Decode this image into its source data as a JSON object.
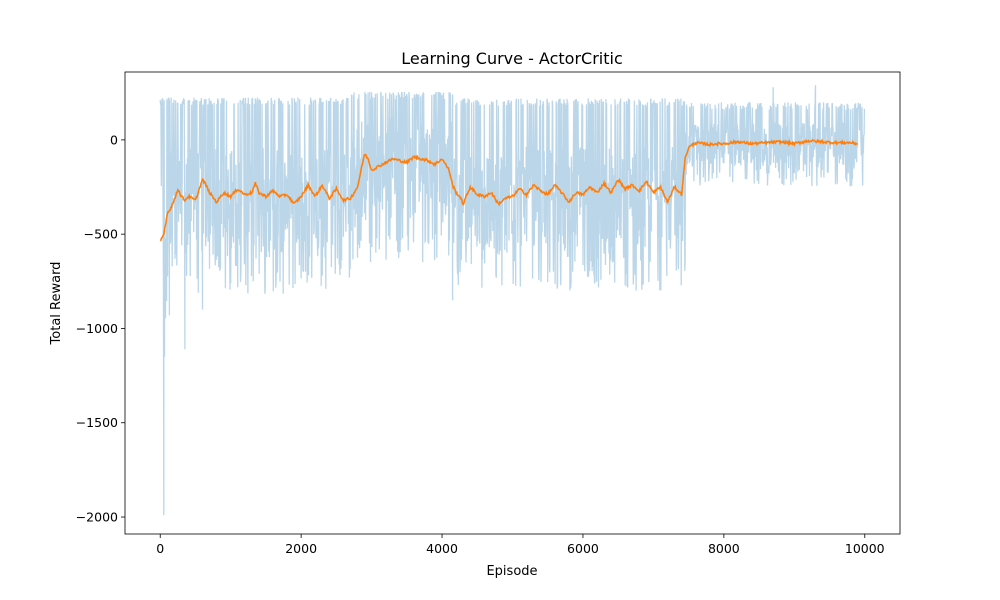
{
  "chart_data": {
    "type": "line",
    "title": "Learning Curve - ActorCritic",
    "xlabel": "Episode",
    "ylabel": "Total Reward",
    "xlim": [
      -500,
      10500
    ],
    "ylim": [
      -2090,
      360
    ],
    "xticks": [
      0,
      2000,
      4000,
      6000,
      8000,
      10000
    ],
    "yticks": [
      -2000,
      -1500,
      -1000,
      -500,
      0
    ],
    "grid": false,
    "legend": null,
    "colors": {
      "raw": "#1f77b4",
      "smoothed": "#ff7f0e"
    },
    "series": [
      {
        "role": "raw-episode-reward",
        "color": "#1f77b4",
        "opacity": 0.3,
        "x_range": [
          0,
          10000
        ],
        "segments": [
          {
            "x": [
              0,
              100
            ],
            "upper": 225,
            "lower": -1000,
            "median": -480
          },
          {
            "x": [
              100,
              2700
            ],
            "upper": 225,
            "lower": -820,
            "median": -300
          },
          {
            "x": [
              2700,
              4150
            ],
            "upper": 255,
            "lower": -650,
            "median": -110
          },
          {
            "x": [
              4150,
              7450
            ],
            "upper": 220,
            "lower": -800,
            "median": -290
          },
          {
            "x": [
              7450,
              10000
            ],
            "upper": 200,
            "lower": -250,
            "median": -20
          }
        ],
        "outliers": [
          {
            "x": 50,
            "y": -1990
          },
          {
            "x": 60,
            "y": -1150
          },
          {
            "x": 130,
            "y": -930
          },
          {
            "x": 350,
            "y": -1110
          },
          {
            "x": 600,
            "y": -900
          },
          {
            "x": 4150,
            "y": -850
          },
          {
            "x": 8700,
            "y": 280
          },
          {
            "x": 9300,
            "y": 290
          }
        ]
      },
      {
        "role": "moving-average",
        "color": "#ff7f0e",
        "x": [
          0,
          50,
          100,
          150,
          200,
          250,
          300,
          350,
          400,
          500,
          600,
          650,
          700,
          800,
          900,
          1000,
          1100,
          1200,
          1300,
          1350,
          1400,
          1500,
          1600,
          1700,
          1800,
          1900,
          2000,
          2100,
          2200,
          2300,
          2400,
          2500,
          2600,
          2700,
          2800,
          2900,
          2950,
          3000,
          3100,
          3200,
          3300,
          3400,
          3500,
          3600,
          3700,
          3800,
          3900,
          4000,
          4100,
          4150,
          4200,
          4250,
          4300,
          4400,
          4500,
          4600,
          4700,
          4800,
          4900,
          5000,
          5100,
          5200,
          5300,
          5400,
          5500,
          5600,
          5700,
          5800,
          5900,
          6000,
          6100,
          6200,
          6300,
          6400,
          6500,
          6600,
          6700,
          6800,
          6900,
          7000,
          7100,
          7200,
          7300,
          7400,
          7450,
          7500,
          7600,
          7700,
          7800,
          7900,
          8000,
          8200,
          8400,
          8600,
          8800,
          9000,
          9200,
          9400,
          9600,
          9800,
          9900
        ],
        "y": [
          -540,
          -500,
          -390,
          -360,
          -320,
          -260,
          -300,
          -320,
          -300,
          -320,
          -210,
          -240,
          -280,
          -330,
          -280,
          -300,
          -260,
          -290,
          -280,
          -230,
          -280,
          -300,
          -270,
          -300,
          -290,
          -340,
          -300,
          -240,
          -300,
          -240,
          -310,
          -260,
          -320,
          -310,
          -250,
          -75,
          -100,
          -160,
          -140,
          -120,
          -100,
          -110,
          -120,
          -90,
          -100,
          -110,
          -130,
          -100,
          -160,
          -240,
          -280,
          -300,
          -340,
          -250,
          -290,
          -300,
          -280,
          -340,
          -310,
          -300,
          -260,
          -290,
          -240,
          -270,
          -290,
          -240,
          -280,
          -330,
          -280,
          -290,
          -250,
          -280,
          -230,
          -280,
          -210,
          -260,
          -240,
          -270,
          -220,
          -280,
          -250,
          -330,
          -250,
          -290,
          -100,
          -40,
          -15,
          -20,
          -25,
          -20,
          -20,
          -10,
          -20,
          -15,
          -10,
          -20,
          -5,
          -10,
          -15,
          -15,
          -20
        ]
      }
    ]
  }
}
